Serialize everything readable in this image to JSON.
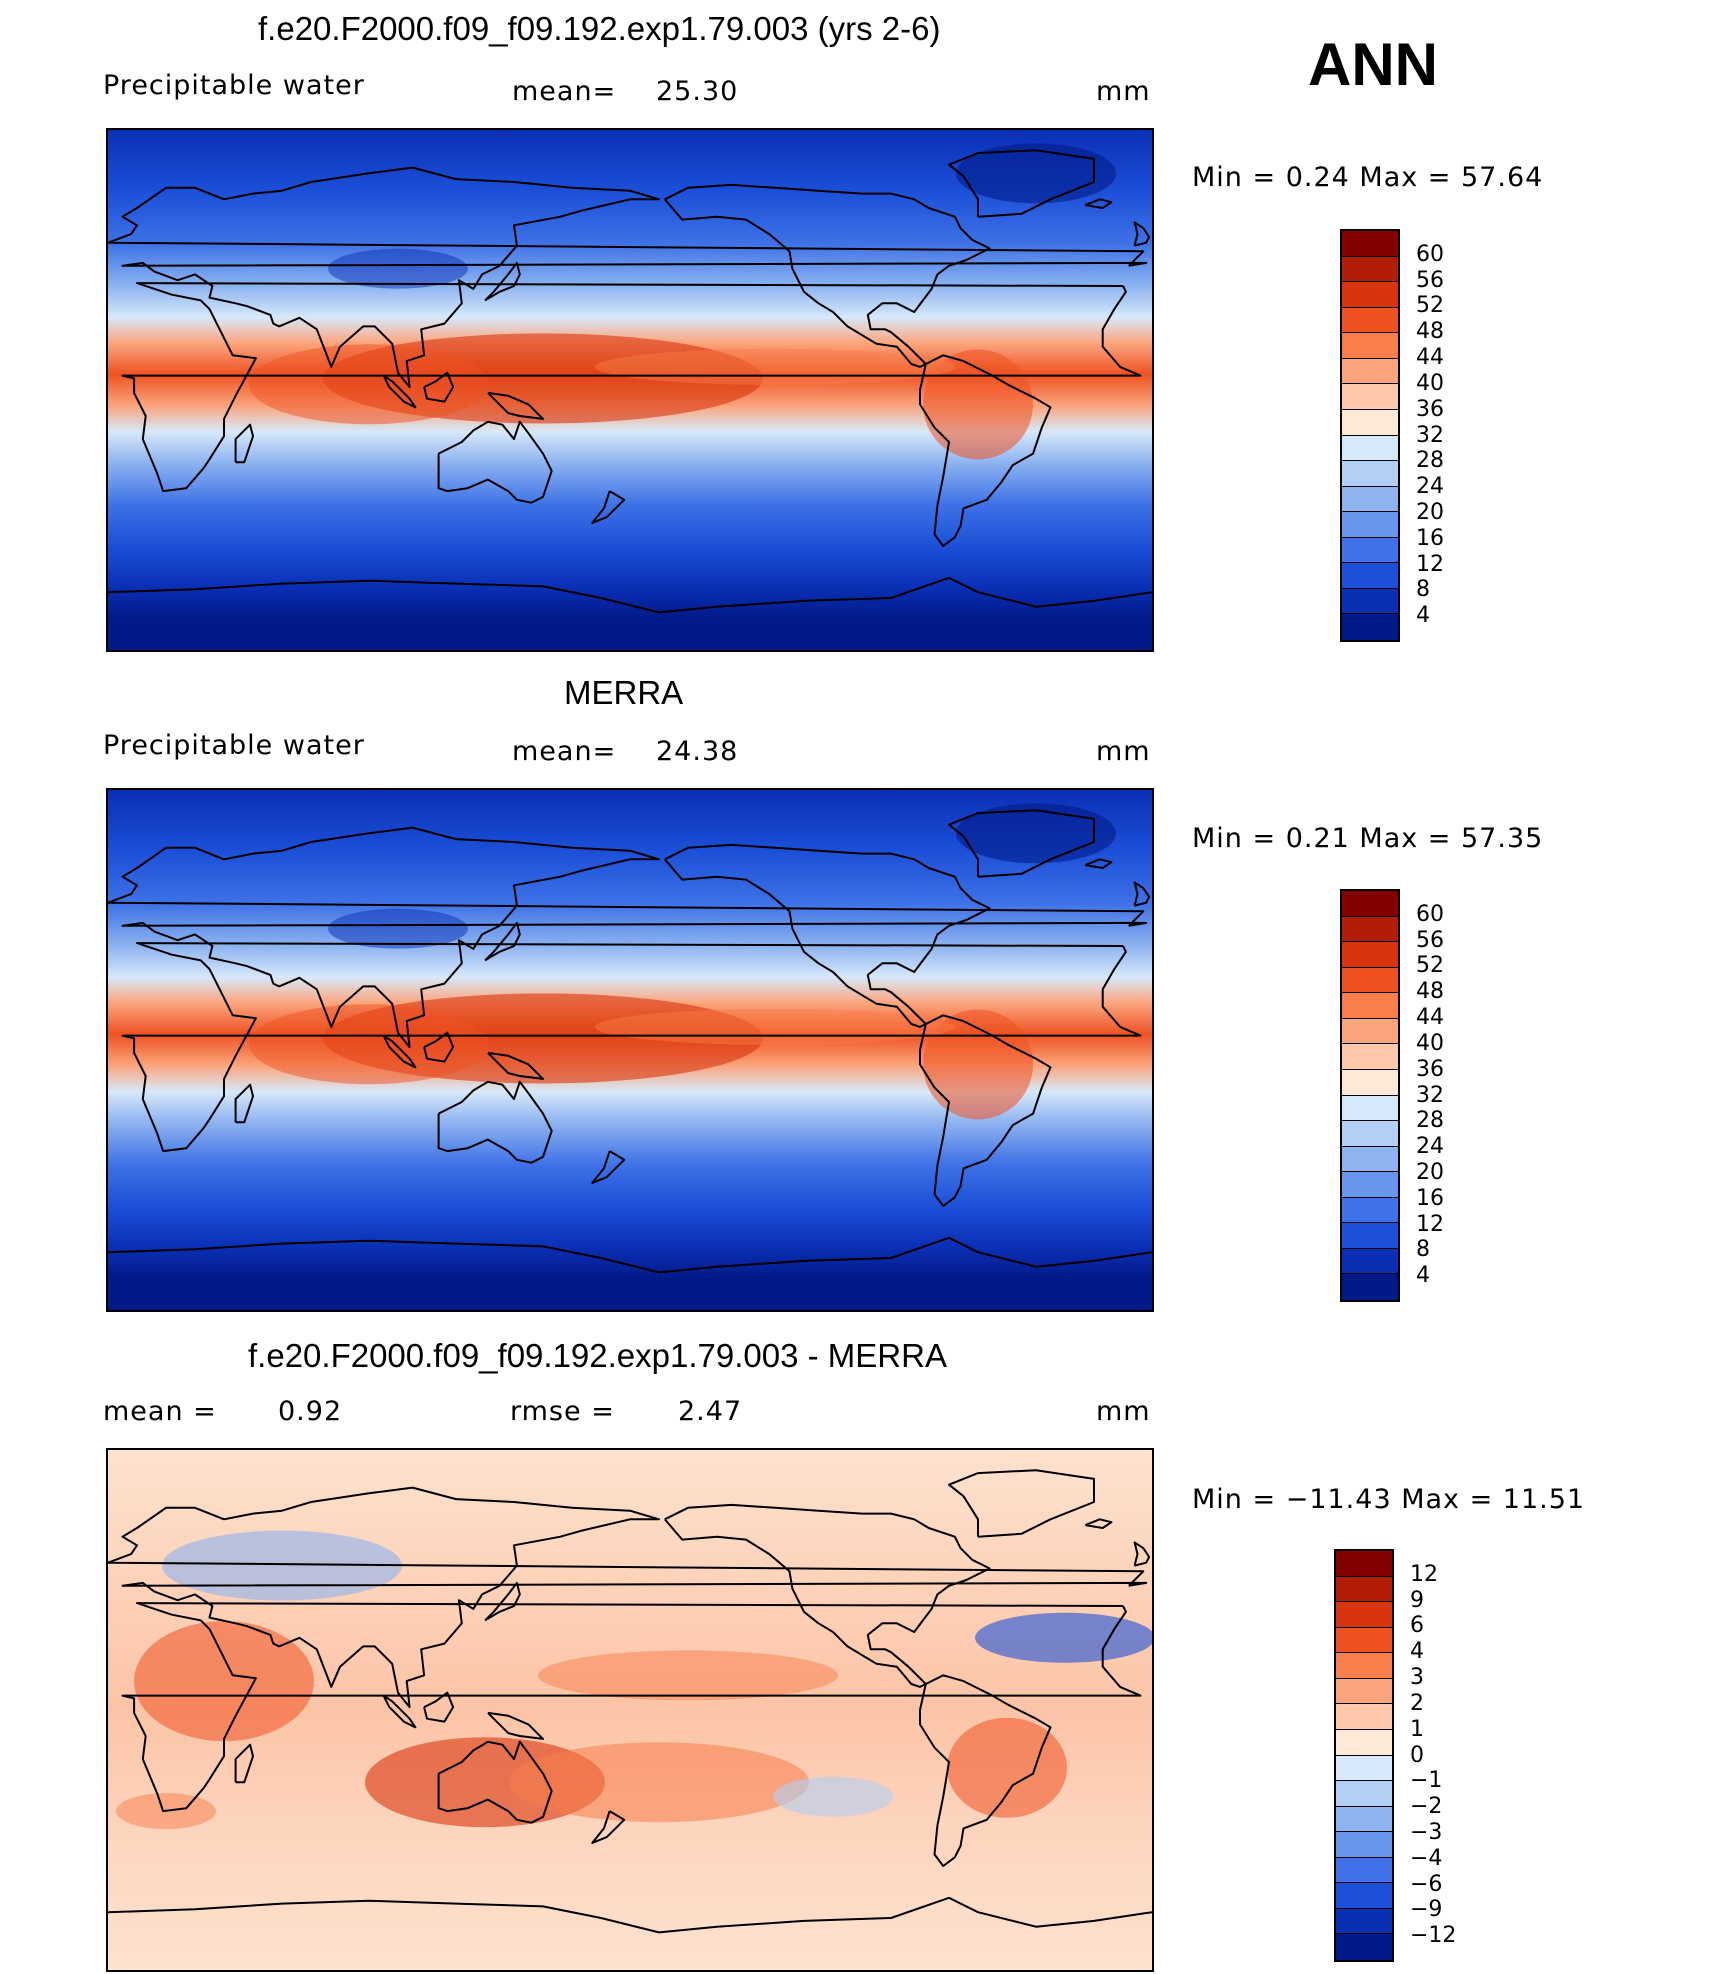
{
  "season": "ANN",
  "panels": [
    {
      "title": "f.e20.F2000.f09_f09.192.exp1.79.003 (yrs 2-6)",
      "variable": "Precipitable  water",
      "stat1_label": "mean=",
      "stat1_value": "25.30",
      "units": "mm",
      "minmax": "Min  =    0.24  Max  =    57.64",
      "kind": "model"
    },
    {
      "title": "MERRA",
      "variable": "Precipitable  water",
      "stat1_label": "mean=",
      "stat1_value": "24.38",
      "units": "mm",
      "minmax": "Min  =    0.21  Max  =    57.35",
      "kind": "obs"
    },
    {
      "title": "f.e20.F2000.f09_f09.192.exp1.79.003 - MERRA",
      "stat1_label": "mean  =",
      "stat1_value": "0.92",
      "stat2_label": "rmse  =",
      "stat2_value": "2.47",
      "units": "mm",
      "minmax": "Min  = −11.43  Max  =    11.51",
      "kind": "diff"
    }
  ],
  "colorbars": {
    "absolute": {
      "labels": [
        "60",
        "56",
        "52",
        "48",
        "44",
        "40",
        "36",
        "32",
        "28",
        "24",
        "20",
        "16",
        "12",
        "8",
        "4"
      ],
      "colors": [
        "#820000",
        "#b11d06",
        "#d8350e",
        "#ee5222",
        "#f87e4c",
        "#fca57d",
        "#fdc9aa",
        "#fde9d6",
        "#d7e8fa",
        "#b2cff5",
        "#8db3f0",
        "#6796ec",
        "#3f72e6",
        "#1c50d8",
        "#0a2fb5",
        "#021a88"
      ]
    },
    "difference": {
      "labels": [
        "12",
        "9",
        "6",
        "4",
        "3",
        "2",
        "1",
        "0",
        "−1",
        "−2",
        "−3",
        "−4",
        "−6",
        "−9",
        "−12"
      ],
      "colors": [
        "#820000",
        "#b11d06",
        "#d8350e",
        "#ee5222",
        "#f87e4c",
        "#fca57d",
        "#fdc9aa",
        "#fde9d6",
        "#d7e8fa",
        "#b2cff5",
        "#8db3f0",
        "#6796ec",
        "#3f72e6",
        "#1c50d8",
        "#0a2fb5",
        "#021a88"
      ]
    }
  }
}
